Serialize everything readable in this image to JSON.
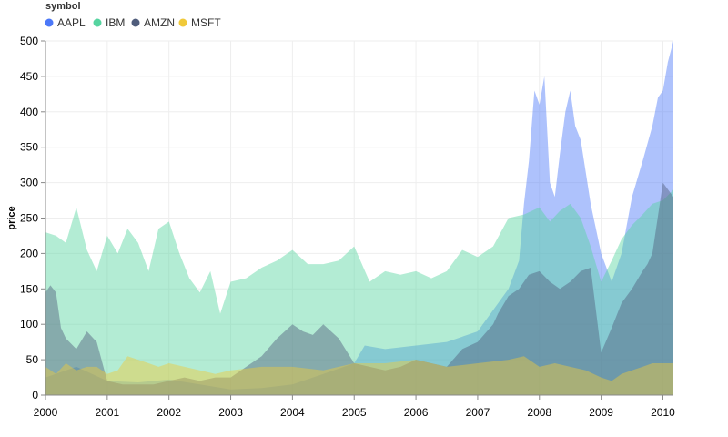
{
  "chart_data": {
    "type": "area",
    "legend_title": "symbol",
    "legend_position": "top-left",
    "xlabel": "",
    "ylabel": "price",
    "ylim": [
      0,
      500
    ],
    "yticks": [
      0,
      50,
      100,
      150,
      200,
      250,
      300,
      350,
      400,
      450,
      500
    ],
    "xlim": [
      2000,
      2010.17
    ],
    "xticks": [
      "2000",
      "2001",
      "2002",
      "2003",
      "2004",
      "2005",
      "2006",
      "2007",
      "2008",
      "2009",
      "2010"
    ],
    "grid": true,
    "colors": {
      "AAPL": "#4c78f8",
      "IBM": "#56d4a0",
      "AMZN": "#505d7c",
      "MSFT": "#f0c93a"
    },
    "series": [
      {
        "name": "AAPL",
        "x": [
          2000.0,
          2000.5,
          2001.0,
          2001.5,
          2002.0,
          2002.5,
          2003.0,
          2003.5,
          2004.0,
          2004.5,
          2005.0,
          2005.17,
          2005.5,
          2006.0,
          2006.5,
          2007.0,
          2007.25,
          2007.5,
          2007.67,
          2007.75,
          2007.83,
          2007.92,
          2008.0,
          2008.08,
          2008.17,
          2008.25,
          2008.33,
          2008.42,
          2008.5,
          2008.58,
          2008.67,
          2008.83,
          2009.0,
          2009.17,
          2009.33,
          2009.5,
          2009.67,
          2009.83,
          2009.92,
          2010.0,
          2010.08,
          2010.17
        ],
        "values": [
          25,
          40,
          20,
          18,
          22,
          15,
          8,
          10,
          15,
          30,
          45,
          70,
          65,
          70,
          75,
          90,
          120,
          150,
          190,
          270,
          330,
          430,
          410,
          450,
          300,
          280,
          340,
          400,
          430,
          380,
          360,
          270,
          200,
          160,
          200,
          280,
          330,
          380,
          420,
          430,
          470,
          500
        ]
      },
      {
        "name": "IBM",
        "x": [
          2000.0,
          2000.17,
          2000.33,
          2000.5,
          2000.67,
          2000.83,
          2001.0,
          2001.17,
          2001.33,
          2001.5,
          2001.67,
          2001.83,
          2002.0,
          2002.17,
          2002.33,
          2002.5,
          2002.67,
          2002.83,
          2003.0,
          2003.25,
          2003.5,
          2003.75,
          2004.0,
          2004.25,
          2004.5,
          2004.75,
          2005.0,
          2005.25,
          2005.5,
          2005.75,
          2006.0,
          2006.25,
          2006.5,
          2006.75,
          2007.0,
          2007.25,
          2007.5,
          2007.75,
          2008.0,
          2008.17,
          2008.33,
          2008.5,
          2008.67,
          2008.83,
          2009.0,
          2009.17,
          2009.33,
          2009.5,
          2009.67,
          2009.83,
          2010.0,
          2010.17
        ],
        "values": [
          230,
          225,
          215,
          265,
          205,
          175,
          225,
          200,
          235,
          215,
          175,
          235,
          245,
          200,
          165,
          145,
          175,
          115,
          160,
          165,
          180,
          190,
          205,
          185,
          185,
          190,
          210,
          160,
          175,
          170,
          175,
          165,
          175,
          205,
          195,
          210,
          250,
          255,
          265,
          245,
          260,
          270,
          250,
          210,
          160,
          190,
          220,
          240,
          255,
          270,
          275,
          290
        ]
      },
      {
        "name": "AMZN",
        "x": [
          2000.0,
          2000.08,
          2000.17,
          2000.25,
          2000.33,
          2000.5,
          2000.67,
          2000.83,
          2001.0,
          2001.25,
          2001.5,
          2001.75,
          2002.0,
          2002.25,
          2002.5,
          2002.75,
          2003.0,
          2003.25,
          2003.5,
          2003.75,
          2004.0,
          2004.17,
          2004.33,
          2004.5,
          2004.75,
          2005.0,
          2005.25,
          2005.5,
          2005.75,
          2006.0,
          2006.25,
          2006.5,
          2006.75,
          2007.0,
          2007.25,
          2007.33,
          2007.5,
          2007.67,
          2007.83,
          2008.0,
          2008.17,
          2008.33,
          2008.5,
          2008.67,
          2008.83,
          2009.0,
          2009.17,
          2009.33,
          2009.5,
          2009.67,
          2009.75,
          2009.83,
          2010.0,
          2010.17
        ],
        "values": [
          145,
          155,
          145,
          95,
          80,
          65,
          90,
          75,
          20,
          15,
          15,
          15,
          20,
          25,
          20,
          25,
          25,
          40,
          55,
          80,
          100,
          90,
          85,
          100,
          80,
          45,
          40,
          35,
          40,
          50,
          45,
          40,
          65,
          75,
          100,
          115,
          140,
          150,
          170,
          175,
          160,
          150,
          160,
          175,
          180,
          60,
          95,
          130,
          150,
          175,
          185,
          200,
          300,
          280
        ]
      },
      {
        "name": "MSFT",
        "x": [
          2000.0,
          2000.17,
          2000.33,
          2000.5,
          2000.67,
          2000.83,
          2001.0,
          2001.17,
          2001.33,
          2001.5,
          2001.67,
          2001.83,
          2002.0,
          2002.25,
          2002.5,
          2002.75,
          2003.0,
          2003.5,
          2004.0,
          2004.5,
          2005.0,
          2005.5,
          2006.0,
          2006.5,
          2007.0,
          2007.5,
          2007.75,
          2008.0,
          2008.25,
          2008.5,
          2008.75,
          2009.0,
          2009.17,
          2009.33,
          2009.5,
          2009.67,
          2009.83,
          2010.0,
          2010.17
        ],
        "values": [
          40,
          30,
          45,
          35,
          40,
          40,
          30,
          35,
          55,
          50,
          45,
          40,
          45,
          40,
          35,
          30,
          35,
          40,
          40,
          35,
          45,
          45,
          50,
          40,
          45,
          50,
          55,
          40,
          45,
          40,
          35,
          25,
          20,
          30,
          35,
          40,
          45,
          45,
          45
        ]
      }
    ]
  }
}
